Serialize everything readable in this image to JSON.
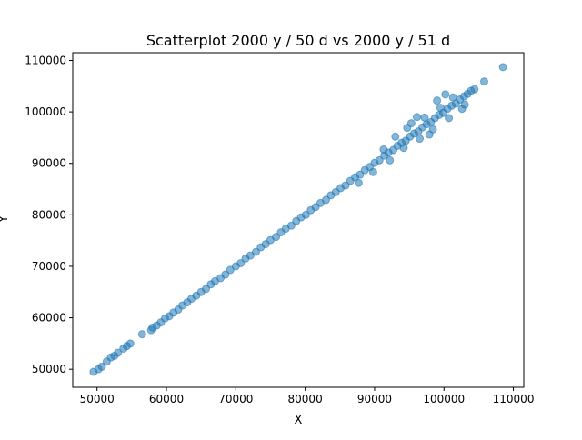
{
  "chart_data": {
    "type": "scatter",
    "title": "Scatterplot 2000 y / 50 d vs 2000 y / 51 d",
    "xlabel": "X",
    "ylabel": "Y",
    "xlim": [
      46500,
      111500
    ],
    "ylim": [
      46500,
      111500
    ],
    "xticks": [
      50000,
      60000,
      70000,
      80000,
      90000,
      100000,
      110000
    ],
    "yticks": [
      50000,
      60000,
      70000,
      80000,
      90000,
      100000,
      110000
    ],
    "xtick_labels": [
      "50000",
      "60000",
      "70000",
      "80000",
      "90000",
      "100000",
      "110000"
    ],
    "ytick_labels": [
      "50000",
      "60000",
      "70000",
      "80000",
      "90000",
      "100000",
      "110000"
    ],
    "grid": false,
    "marker_color": "#1f77b4",
    "marker_alpha": 0.55,
    "series": [
      {
        "points": [
          [
            49500,
            49500
          ],
          [
            50200,
            50000
          ],
          [
            50700,
            50500
          ],
          [
            51400,
            51500
          ],
          [
            52000,
            52300
          ],
          [
            52500,
            52600
          ],
          [
            53000,
            53200
          ],
          [
            53800,
            54000
          ],
          [
            54300,
            54500
          ],
          [
            54800,
            55000
          ],
          [
            56500,
            56800
          ],
          [
            57800,
            57600
          ],
          [
            58000,
            58100
          ],
          [
            58600,
            58500
          ],
          [
            59200,
            59100
          ],
          [
            59800,
            59900
          ],
          [
            60400,
            60300
          ],
          [
            61000,
            61000
          ],
          [
            61700,
            61600
          ],
          [
            62300,
            62400
          ],
          [
            63000,
            63000
          ],
          [
            63600,
            63700
          ],
          [
            64300,
            64300
          ],
          [
            65000,
            65000
          ],
          [
            65700,
            65600
          ],
          [
            66400,
            66500
          ],
          [
            67000,
            67100
          ],
          [
            67800,
            67700
          ],
          [
            68500,
            68400
          ],
          [
            69200,
            69300
          ],
          [
            70000,
            70000
          ],
          [
            70700,
            70600
          ],
          [
            71400,
            71500
          ],
          [
            72100,
            72100
          ],
          [
            72900,
            72800
          ],
          [
            73600,
            73700
          ],
          [
            74300,
            74300
          ],
          [
            75000,
            75100
          ],
          [
            75800,
            75700
          ],
          [
            76500,
            76600
          ],
          [
            77200,
            77300
          ],
          [
            78000,
            77900
          ],
          [
            78700,
            78800
          ],
          [
            79400,
            79500
          ],
          [
            80100,
            80000
          ],
          [
            80800,
            80900
          ],
          [
            81500,
            81500
          ],
          [
            82200,
            82300
          ],
          [
            83000,
            82900
          ],
          [
            83700,
            83800
          ],
          [
            84400,
            84400
          ],
          [
            85100,
            85200
          ],
          [
            85800,
            85700
          ],
          [
            86500,
            86600
          ],
          [
            87200,
            87300
          ],
          [
            87900,
            87800
          ],
          [
            88600,
            88700
          ],
          [
            89300,
            89300
          ],
          [
            90000,
            90100
          ],
          [
            90700,
            90600
          ],
          [
            91400,
            91500
          ],
          [
            92000,
            92100
          ],
          [
            92700,
            92600
          ],
          [
            93300,
            93400
          ],
          [
            93900,
            94000
          ],
          [
            94500,
            94400
          ],
          [
            95100,
            95200
          ],
          [
            95700,
            95800
          ],
          [
            96300,
            96200
          ],
          [
            96900,
            97000
          ],
          [
            97500,
            97600
          ],
          [
            98100,
            98000
          ],
          [
            98700,
            98800
          ],
          [
            99300,
            99400
          ],
          [
            99900,
            99800
          ],
          [
            100500,
            100600
          ],
          [
            101100,
            101200
          ],
          [
            101700,
            101600
          ],
          [
            102300,
            102400
          ],
          [
            102900,
            103000
          ],
          [
            103400,
            103500
          ],
          [
            103900,
            104100
          ],
          [
            104400,
            104400
          ],
          [
            105800,
            105900
          ],
          [
            108500,
            108700
          ],
          [
            93000,
            95200
          ],
          [
            94200,
            93000
          ],
          [
            95300,
            97800
          ],
          [
            96500,
            94800
          ],
          [
            97200,
            98900
          ],
          [
            98400,
            96600
          ],
          [
            99500,
            100800
          ],
          [
            100700,
            98800
          ],
          [
            101300,
            102800
          ],
          [
            102600,
            100600
          ],
          [
            89800,
            88300
          ],
          [
            91300,
            92700
          ],
          [
            92200,
            90600
          ],
          [
            87700,
            86200
          ],
          [
            96100,
            99000
          ],
          [
            100200,
            103400
          ],
          [
            103000,
            101400
          ],
          [
            94700,
            96900
          ],
          [
            97900,
            95600
          ],
          [
            99000,
            102200
          ]
        ]
      }
    ]
  }
}
